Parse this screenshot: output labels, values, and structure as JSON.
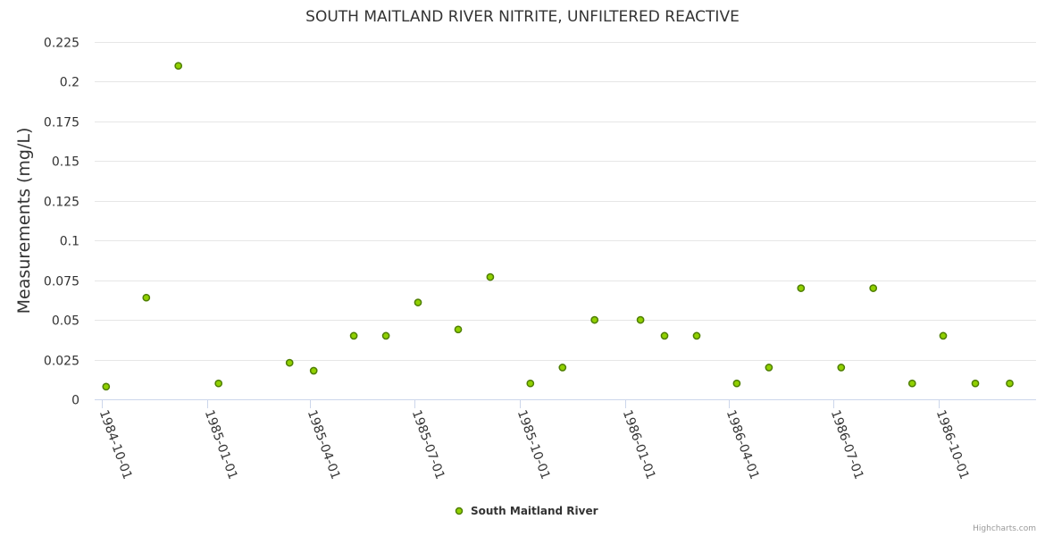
{
  "colors": {
    "point_fill": "#90d000",
    "point_stroke": "#4e7e00",
    "grid": "#e6e6e6",
    "axis": "#ccd6eb",
    "text": "#333333"
  },
  "chart_data": {
    "type": "scatter",
    "title": "SOUTH MAITLAND RIVER NITRITE, UNFILTERED REACTIVE",
    "xlabel": "",
    "ylabel": "Measurements (mg/L)",
    "ylim": [
      0,
      0.225
    ],
    "xlim": [
      "1984-09-25",
      "1986-12-25"
    ],
    "yticks": [
      {
        "value": 0,
        "label": "0"
      },
      {
        "value": 0.025,
        "label": "0.025"
      },
      {
        "value": 0.05,
        "label": "0.05"
      },
      {
        "value": 0.075,
        "label": "0.075"
      },
      {
        "value": 0.1,
        "label": "0.1"
      },
      {
        "value": 0.125,
        "label": "0.125"
      },
      {
        "value": 0.15,
        "label": "0.15"
      },
      {
        "value": 0.175,
        "label": "0.175"
      },
      {
        "value": 0.2,
        "label": "0.2"
      },
      {
        "value": 0.225,
        "label": "0.225"
      }
    ],
    "xticks": [
      {
        "date": "1984-10-01",
        "label": "1984-10-01"
      },
      {
        "date": "1985-01-01",
        "label": "1985-01-01"
      },
      {
        "date": "1985-04-01",
        "label": "1985-04-01"
      },
      {
        "date": "1985-07-01",
        "label": "1985-07-01"
      },
      {
        "date": "1985-10-01",
        "label": "1985-10-01"
      },
      {
        "date": "1986-01-01",
        "label": "1986-01-01"
      },
      {
        "date": "1986-04-01",
        "label": "1986-04-01"
      },
      {
        "date": "1986-07-01",
        "label": "1986-07-01"
      },
      {
        "date": "1986-10-01",
        "label": "1986-10-01"
      }
    ],
    "series": [
      {
        "name": "South Maitland River",
        "points": [
          {
            "x": "1984-10-05",
            "y": 0.008
          },
          {
            "x": "1984-11-09",
            "y": 0.064
          },
          {
            "x": "1984-12-07",
            "y": 0.21
          },
          {
            "x": "1985-01-11",
            "y": 0.01
          },
          {
            "x": "1985-03-14",
            "y": 0.023
          },
          {
            "x": "1985-04-04",
            "y": 0.018
          },
          {
            "x": "1985-05-09",
            "y": 0.04
          },
          {
            "x": "1985-06-06",
            "y": 0.04
          },
          {
            "x": "1985-07-04",
            "y": 0.061
          },
          {
            "x": "1985-08-08",
            "y": 0.044
          },
          {
            "x": "1985-09-05",
            "y": 0.077
          },
          {
            "x": "1985-10-10",
            "y": 0.01
          },
          {
            "x": "1985-11-07",
            "y": 0.02
          },
          {
            "x": "1985-12-05",
            "y": 0.05
          },
          {
            "x": "1986-01-14",
            "y": 0.05
          },
          {
            "x": "1986-02-04",
            "y": 0.04
          },
          {
            "x": "1986-03-04",
            "y": 0.04
          },
          {
            "x": "1986-04-08",
            "y": 0.01
          },
          {
            "x": "1986-05-06",
            "y": 0.02
          },
          {
            "x": "1986-06-03",
            "y": 0.07
          },
          {
            "x": "1986-07-08",
            "y": 0.02
          },
          {
            "x": "1986-08-05",
            "y": 0.07
          },
          {
            "x": "1986-09-08",
            "y": 0.01
          },
          {
            "x": "1986-10-05",
            "y": 0.04
          },
          {
            "x": "1986-11-02",
            "y": 0.01
          },
          {
            "x": "1986-12-02",
            "y": 0.01
          }
        ]
      }
    ]
  },
  "legend": {
    "label": "South Maitland River"
  },
  "credits": "Highcharts.com"
}
